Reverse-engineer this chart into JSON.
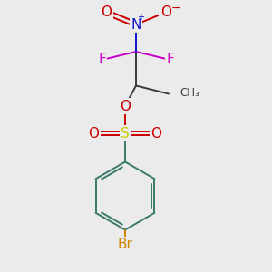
{
  "bg_color": "#ebebeb",
  "atom_colors": {
    "C": "#3a3a3a",
    "N": "#1414cc",
    "O": "#cc0000",
    "F": "#cc00cc",
    "S": "#cccc00",
    "Br": "#cc8800",
    "ring": "#3a7a6a"
  }
}
